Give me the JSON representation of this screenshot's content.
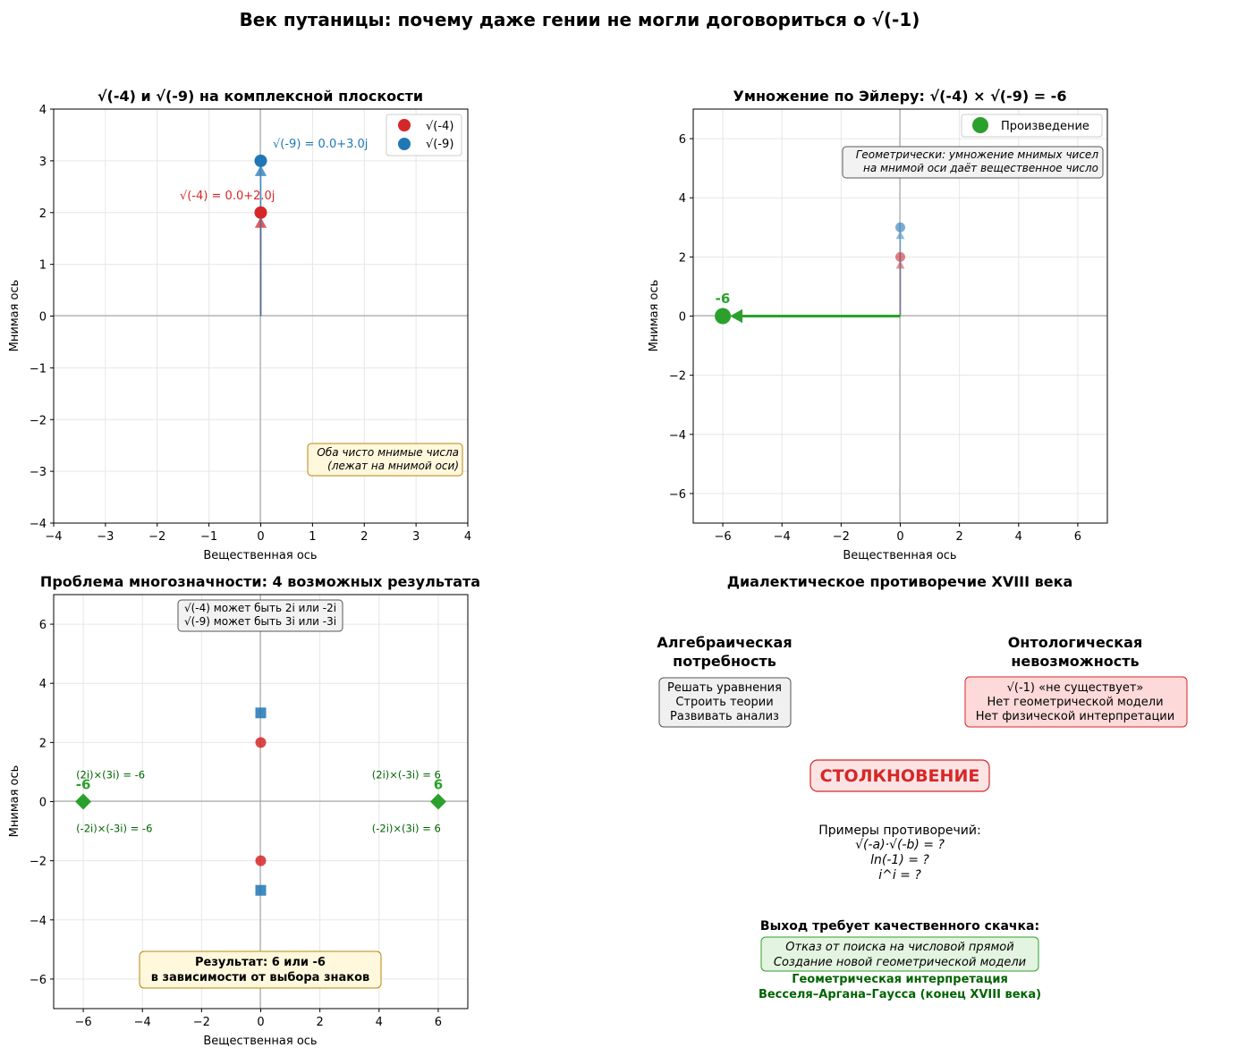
{
  "suptitle": "Век путаницы: почему даже гении не могли договориться о √(-1)",
  "colors": {
    "red": "#d62728",
    "blue": "#1f77b4",
    "green": "#2ca02c",
    "darkgreen": "#006400"
  },
  "chart_data": [
    {
      "id": "plot1",
      "type": "scatter",
      "title": "√(-4) и √(-9) на комплексной плоскости",
      "xlabel": "Вещественная ось",
      "ylabel": "Мнимая ось",
      "xlim": [
        -4,
        4
      ],
      "ylim": [
        -4,
        4
      ],
      "xticks": [
        -4,
        -3,
        -2,
        -1,
        0,
        1,
        2,
        3,
        4
      ],
      "yticks": [
        -4,
        -3,
        -2,
        -1,
        0,
        1,
        2,
        3,
        4
      ],
      "grid": true,
      "legend_position": "top-right",
      "series": [
        {
          "name": "√(-4)",
          "x": 0,
          "y": 2,
          "color": "#d62728",
          "label": "√(-4) = 0.0+2.0j"
        },
        {
          "name": "√(-9)",
          "x": 0,
          "y": 3,
          "color": "#1f77b4",
          "label": "√(-9) = 0.0+3.0j"
        }
      ],
      "note": [
        "Оба чисто мнимые числа",
        "(лежат на мнимой оси)"
      ]
    },
    {
      "id": "plot2",
      "type": "scatter",
      "title": "Умножение по Эйлеру: √(-4) × √(-9) = -6",
      "xlabel": "Вещественная ось",
      "ylabel": "Мнимая ось",
      "xlim": [
        -7,
        7
      ],
      "ylim": [
        -7,
        7
      ],
      "xticks": [
        -6,
        -4,
        -2,
        0,
        2,
        4,
        6
      ],
      "yticks": [
        -6,
        -4,
        -2,
        0,
        2,
        4,
        6
      ],
      "grid": true,
      "legend_position": "top-right",
      "factors": [
        {
          "x": 0,
          "y": 2,
          "color": "#d62728"
        },
        {
          "x": 0,
          "y": 3,
          "color": "#1f77b4"
        }
      ],
      "product": {
        "name": "Произведение",
        "x": -6,
        "y": 0,
        "label": "-6",
        "color": "#2ca02c"
      },
      "note": [
        "Геометрически: умножение мнимых чисел",
        "на мнимой оси даёт вещественное число"
      ]
    },
    {
      "id": "plot3",
      "type": "scatter",
      "title": "Проблема многозначности: 4 возможных результата",
      "xlabel": "Вещественная ось",
      "ylabel": "Мнимая ось",
      "xlim": [
        -7,
        7
      ],
      "ylim": [
        -7,
        7
      ],
      "xticks": [
        -6,
        -4,
        -2,
        0,
        2,
        4,
        6
      ],
      "yticks": [
        -6,
        -4,
        -2,
        0,
        2,
        4,
        6
      ],
      "grid": true,
      "roots_of_minus4": {
        "x": [
          0,
          0
        ],
        "y": [
          2,
          -2
        ],
        "color": "#d62728"
      },
      "roots_of_minus9": {
        "x": [
          0,
          0
        ],
        "y": [
          3,
          -3
        ],
        "color": "#1f77b4"
      },
      "products": [
        {
          "x": -6,
          "y": 0,
          "label": "-6"
        },
        {
          "x": 6,
          "y": 0,
          "label": "6"
        }
      ],
      "combos": [
        {
          "text": "(2i)×(3i) = -6",
          "x": -6,
          "y": 0.9
        },
        {
          "text": "(-2i)×(-3i) = -6",
          "x": -6,
          "y": -0.9
        },
        {
          "text": "(2i)×(-3i) = 6",
          "x": 4,
          "y": 0.9
        },
        {
          "text": "(-2i)×(3i) = 6",
          "x": 4,
          "y": -0.9
        }
      ],
      "info_box": [
        "√(-4) может быть 2i или -2i",
        "√(-9) может быть 3i или -3i"
      ],
      "result_box": [
        "Результат: 6 или -6",
        "в зависимости от выбора знаков"
      ]
    }
  ],
  "panel4": {
    "title": "Диалектическое противоречие XVIII века",
    "left_heading": [
      "Алгебраическая",
      "потребность"
    ],
    "left_items": [
      "Решать уравнения",
      "Строить теории",
      "Развивать анализ"
    ],
    "right_heading": [
      "Онтологическая",
      "невозможность"
    ],
    "right_items": [
      "√(-1) «не существует»",
      "Нет геометрической модели",
      "Нет физической интерпретации"
    ],
    "clash": "СТОЛКНОВЕНИЕ",
    "examples_title": "Примеры противоречий:",
    "examples": [
      "√(-a)·√(-b) = ?",
      "ln(-1) = ?",
      "i^i = ?"
    ],
    "exit_title": "Выход требует качественного скачка:",
    "exit_items": [
      "Отказ от поиска на числовой прямой",
      "Создание новой геометрической модели"
    ],
    "exit_result": [
      "Геометрическая интерпретация",
      "Весселя–Аргана–Гаусса (конец XVIII века)"
    ]
  }
}
